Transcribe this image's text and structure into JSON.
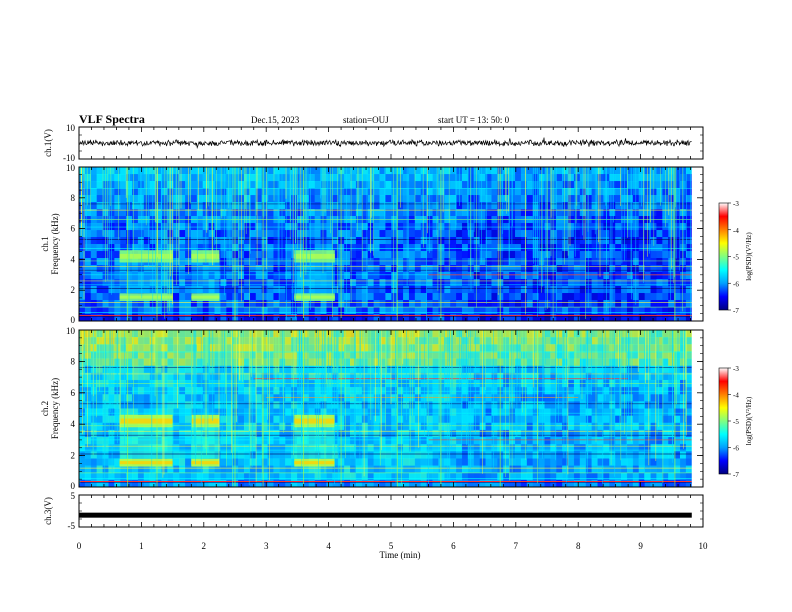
{
  "header": {
    "title": "VLF Spectra",
    "date": "Dec.15, 2023",
    "station": "station=OUJ",
    "start": "start  UT =   13: 50: 0"
  },
  "chart_data": [
    {
      "type": "line",
      "panel": "ch1-waveform",
      "ylabel": "ch.1(V)",
      "ylim": [
        -10,
        10
      ],
      "yticks": [
        "10",
        "-10"
      ],
      "baseline": 0,
      "color": "#000000"
    },
    {
      "type": "heatmap",
      "panel": "ch1-spectrogram",
      "ylabel_top": "ch.1",
      "ylabel": "Frequency (kHz)",
      "ylim": [
        0,
        10
      ],
      "yticks": [
        "0",
        "2",
        "4",
        "6",
        "8",
        "10"
      ],
      "colorbar_label": "log(PSD)(V²/Hz)",
      "colorbar_range": [
        -7,
        -3
      ],
      "colorbar_ticks": [
        "-3",
        "-4",
        "-5",
        "-6",
        "-7"
      ],
      "bursts": [
        [
          0.65,
          1.5
        ],
        [
          1.8,
          2.25
        ],
        [
          3.45,
          4.1
        ]
      ],
      "burst_bands": [
        [
          1.3,
          1.8
        ],
        [
          3.8,
          4.6
        ]
      ]
    },
    {
      "type": "heatmap",
      "panel": "ch2-spectrogram",
      "ylabel_top": "ch.2",
      "ylabel": "Frequency (kHz)",
      "ylim": [
        0,
        10
      ],
      "yticks": [
        "0",
        "2",
        "4",
        "6",
        "8",
        "10"
      ],
      "colorbar_label": "log(PSD)(V²/Hz)",
      "colorbar_range": [
        -7,
        -3
      ],
      "colorbar_ticks": [
        "-3",
        "-4",
        "-5",
        "-6",
        "-7"
      ],
      "bursts": [
        [
          0.65,
          1.5
        ],
        [
          1.8,
          2.25
        ],
        [
          3.45,
          4.1
        ]
      ],
      "burst_bands": [
        [
          1.3,
          1.8
        ],
        [
          3.8,
          4.6
        ]
      ]
    },
    {
      "type": "line",
      "panel": "ch3-waveform",
      "ylabel": "ch.3(V)",
      "ylim": [
        -5,
        5
      ],
      "yticks": [
        "5",
        "-5"
      ],
      "baseline": -1.3,
      "color": "#000000"
    }
  ],
  "xaxis": {
    "label": "Time (min)",
    "range": [
      0,
      10
    ],
    "ticks": [
      "0",
      "1",
      "2",
      "3",
      "4",
      "5",
      "6",
      "7",
      "8",
      "9",
      "10"
    ],
    "data_end": 9.82
  },
  "colormap": [
    "#000080",
    "#0000ff",
    "#00a0ff",
    "#00ffff",
    "#80ff80",
    "#ffff00",
    "#ff8000",
    "#ff0000",
    "#ffffff"
  ]
}
